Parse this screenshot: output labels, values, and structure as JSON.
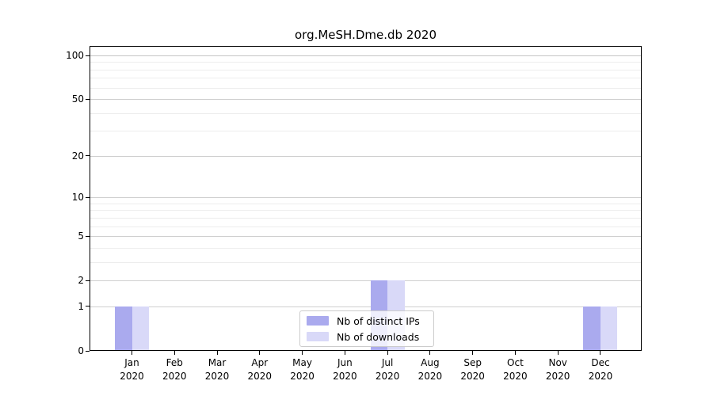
{
  "chart_data": {
    "type": "bar",
    "title": "org.MeSH.Dme.db 2020",
    "categories": [
      "Jan 2020",
      "Feb 2020",
      "Mar 2020",
      "Apr 2020",
      "May 2020",
      "Jun 2020",
      "Jul 2020",
      "Aug 2020",
      "Sep 2020",
      "Oct 2020",
      "Nov 2020",
      "Dec 2020"
    ],
    "series": [
      {
        "name": "Nb of distinct IPs",
        "color": "#aaaaee",
        "values": [
          1,
          0,
          0,
          0,
          0,
          0,
          2,
          0,
          0,
          0,
          0,
          1
        ]
      },
      {
        "name": "Nb of downloads",
        "color": "#d9d9f8",
        "values": [
          1,
          0,
          0,
          0,
          0,
          0,
          2,
          0,
          0,
          0,
          0,
          1
        ]
      }
    ],
    "yscale": "log1p",
    "yticks": [
      0,
      1,
      2,
      5,
      10,
      20,
      50,
      100
    ],
    "yticks_minor": [
      3,
      4,
      6,
      7,
      8,
      9,
      30,
      40,
      60,
      70,
      80,
      90
    ],
    "ylim": [
      0,
      116
    ],
    "xlabel": "",
    "ylabel": "",
    "grid": true,
    "legend_position": "bottom-center"
  }
}
